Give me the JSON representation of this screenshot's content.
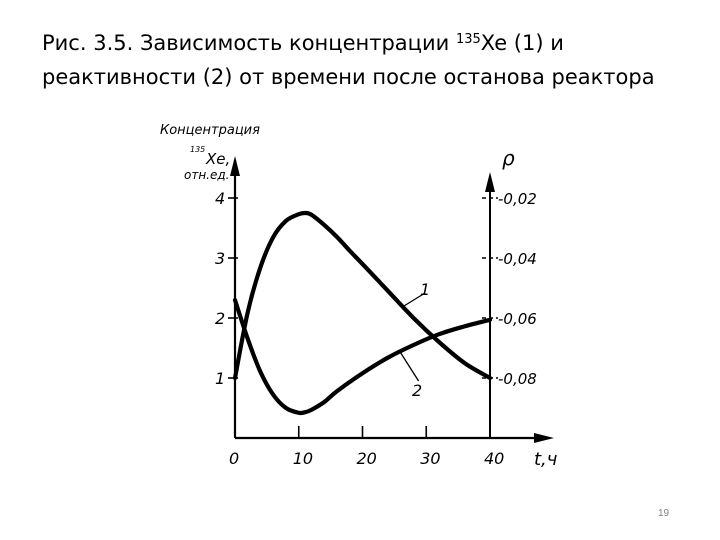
{
  "slide": {
    "caption_line1_prefix": "Рис. 3.5. Зависимость концентрации ",
    "caption_sup": "135",
    "caption_line1_suffix": "Xe (1) и",
    "caption_line2": "реактивности (2) от времени после останова реактора",
    "page_number": "19"
  },
  "chart_data": {
    "type": "line",
    "title": "",
    "xlabel": "t,ч",
    "ylabel_left_line1": "Концентрация",
    "ylabel_left_sup": "135",
    "ylabel_left_line2": "Xe,",
    "ylabel_left_line3": "отн.ед.",
    "ylabel_right": "ρ",
    "xlim": [
      0,
      40
    ],
    "ylim_left": [
      0,
      4
    ],
    "x_ticks": [
      0,
      10,
      20,
      30,
      40
    ],
    "x_tick_labels": [
      "0",
      "10",
      "20",
      "30",
      "40"
    ],
    "y_left_ticks": [
      1,
      2,
      3,
      4
    ],
    "y_left_tick_labels": [
      "1",
      "2",
      "3",
      "4"
    ],
    "y_right_ticks": [
      4,
      3,
      2,
      1
    ],
    "y_right_tick_labels": [
      "-0,02",
      "-0,04",
      "-0,06",
      "-0,08"
    ],
    "grid": false,
    "series": [
      {
        "name": "1",
        "x": [
          0,
          2,
          4,
          6,
          8,
          10,
          11,
          12,
          14,
          16,
          18,
          20,
          24,
          28,
          32,
          36,
          40
        ],
        "y": [
          1.0,
          2.1,
          2.85,
          3.35,
          3.62,
          3.73,
          3.75,
          3.72,
          3.55,
          3.35,
          3.12,
          2.9,
          2.45,
          2.0,
          1.6,
          1.25,
          1.0
        ]
      },
      {
        "name": "2",
        "x": [
          0,
          2,
          4,
          6,
          8,
          10,
          11,
          12,
          14,
          16,
          20,
          24,
          28,
          32,
          36,
          40
        ],
        "y": [
          2.3,
          1.65,
          1.1,
          0.72,
          0.5,
          0.42,
          0.43,
          0.47,
          0.6,
          0.78,
          1.08,
          1.34,
          1.55,
          1.73,
          1.86,
          1.97
        ]
      }
    ]
  }
}
